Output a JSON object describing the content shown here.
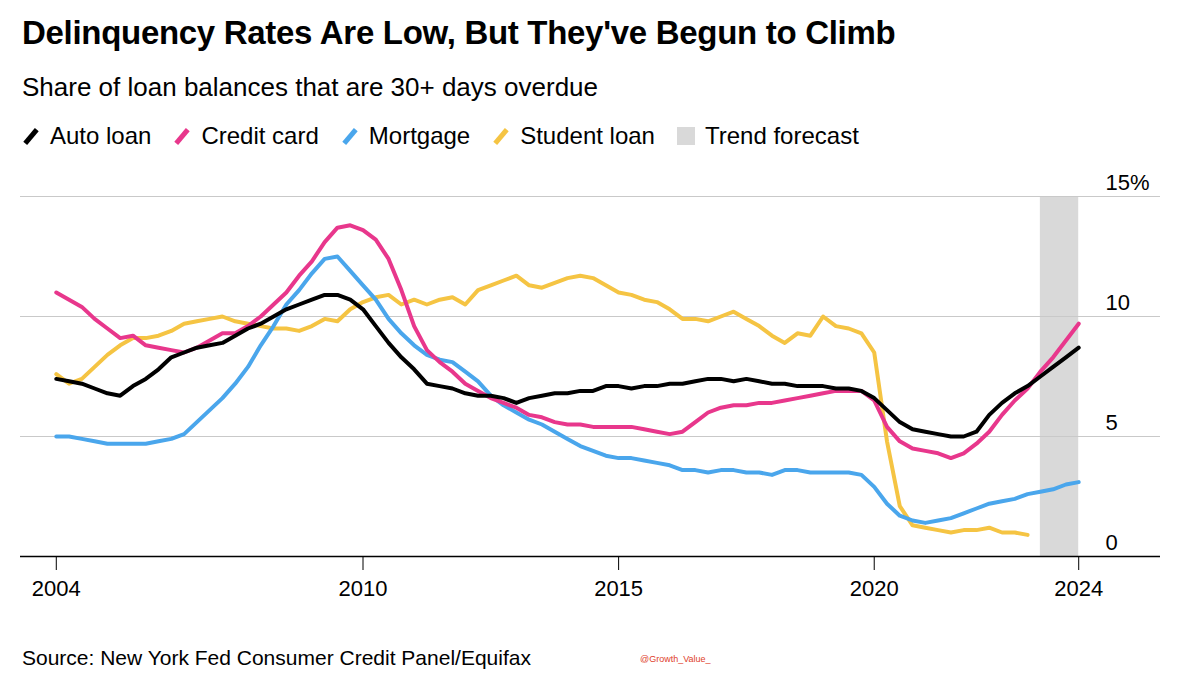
{
  "chart_data": {
    "type": "line",
    "title": "Delinquency Rates Are Low, But They've Begun to Climb",
    "subtitle": "Share of loan balances that are 30+ days overdue",
    "source": "Source: New York Fed Consumer Credit Panel/Equifax",
    "watermark": "@Growth_Value_",
    "x": [
      2004,
      2004.25,
      2004.5,
      2004.75,
      2005,
      2005.25,
      2005.5,
      2005.75,
      2006,
      2006.25,
      2006.5,
      2006.75,
      2007,
      2007.25,
      2007.5,
      2007.75,
      2008,
      2008.25,
      2008.5,
      2008.75,
      2009,
      2009.25,
      2009.5,
      2009.75,
      2010,
      2010.25,
      2010.5,
      2010.75,
      2011,
      2011.25,
      2011.5,
      2011.75,
      2012,
      2012.25,
      2012.5,
      2012.75,
      2013,
      2013.25,
      2013.5,
      2013.75,
      2014,
      2014.25,
      2014.5,
      2014.75,
      2015,
      2015.25,
      2015.5,
      2015.75,
      2016,
      2016.25,
      2016.5,
      2016.75,
      2017,
      2017.25,
      2017.5,
      2017.75,
      2018,
      2018.25,
      2018.5,
      2018.75,
      2019,
      2019.25,
      2019.5,
      2019.75,
      2020,
      2020.25,
      2020.5,
      2020.75,
      2021,
      2021.25,
      2021.5,
      2021.75,
      2022,
      2022.25,
      2022.5,
      2022.75,
      2023,
      2023.25,
      2023.5,
      2023.75,
      2024
    ],
    "series": [
      {
        "name": "Auto loan",
        "color": "#000000",
        "values": [
          7.4,
          7.3,
          7.2,
          7.0,
          6.8,
          6.7,
          7.1,
          7.4,
          7.8,
          8.3,
          8.5,
          8.7,
          8.8,
          8.9,
          9.2,
          9.5,
          9.7,
          10.0,
          10.3,
          10.5,
          10.7,
          10.9,
          10.9,
          10.7,
          10.3,
          9.6,
          8.9,
          8.3,
          7.8,
          7.2,
          7.1,
          7.0,
          6.8,
          6.7,
          6.7,
          6.6,
          6.4,
          6.6,
          6.7,
          6.8,
          6.8,
          6.9,
          6.9,
          7.1,
          7.1,
          7.0,
          7.1,
          7.1,
          7.2,
          7.2,
          7.3,
          7.4,
          7.4,
          7.3,
          7.4,
          7.3,
          7.2,
          7.2,
          7.1,
          7.1,
          7.1,
          7.0,
          7.0,
          6.9,
          6.6,
          6.1,
          5.6,
          5.3,
          5.2,
          5.1,
          5.0,
          5.0,
          5.2,
          5.9,
          6.4,
          6.8,
          7.1,
          7.5,
          7.9,
          8.3,
          8.7
        ]
      },
      {
        "name": "Credit card",
        "color": "#e8378c",
        "values": [
          11.0,
          10.7,
          10.4,
          9.9,
          9.5,
          9.1,
          9.2,
          8.8,
          8.7,
          8.6,
          8.5,
          8.7,
          9.0,
          9.3,
          9.3,
          9.6,
          10.0,
          10.5,
          11.0,
          11.7,
          12.3,
          13.1,
          13.7,
          13.8,
          13.6,
          13.2,
          12.4,
          11.1,
          9.6,
          8.6,
          8.1,
          7.7,
          7.2,
          6.9,
          6.6,
          6.4,
          6.2,
          5.9,
          5.8,
          5.6,
          5.5,
          5.5,
          5.4,
          5.4,
          5.4,
          5.4,
          5.3,
          5.2,
          5.1,
          5.2,
          5.6,
          6.0,
          6.2,
          6.3,
          6.3,
          6.4,
          6.4,
          6.5,
          6.6,
          6.7,
          6.8,
          6.9,
          6.9,
          6.9,
          6.5,
          5.4,
          4.8,
          4.5,
          4.4,
          4.3,
          4.1,
          4.3,
          4.7,
          5.2,
          5.9,
          6.5,
          7.0,
          7.7,
          8.3,
          9.0,
          9.7
        ]
      },
      {
        "name": "Mortgage",
        "color": "#4aa6ec",
        "values": [
          5.0,
          5.0,
          4.9,
          4.8,
          4.7,
          4.7,
          4.7,
          4.7,
          4.8,
          4.9,
          5.1,
          5.6,
          6.1,
          6.6,
          7.2,
          7.9,
          8.8,
          9.6,
          10.5,
          11.1,
          11.8,
          12.4,
          12.5,
          11.9,
          11.3,
          10.7,
          9.9,
          9.3,
          8.8,
          8.4,
          8.2,
          8.1,
          7.7,
          7.3,
          6.7,
          6.3,
          6.0,
          5.7,
          5.5,
          5.2,
          4.9,
          4.6,
          4.4,
          4.2,
          4.1,
          4.1,
          4.0,
          3.9,
          3.8,
          3.6,
          3.6,
          3.5,
          3.6,
          3.6,
          3.5,
          3.5,
          3.4,
          3.6,
          3.6,
          3.5,
          3.5,
          3.5,
          3.5,
          3.4,
          2.9,
          2.2,
          1.7,
          1.5,
          1.4,
          1.5,
          1.6,
          1.8,
          2.0,
          2.2,
          2.3,
          2.4,
          2.6,
          2.7,
          2.8,
          3.0,
          3.1
        ]
      },
      {
        "name": "Student loan",
        "color": "#f5c443",
        "values": [
          7.6,
          7.2,
          7.4,
          7.9,
          8.4,
          8.8,
          9.1,
          9.1,
          9.2,
          9.4,
          9.7,
          9.8,
          9.9,
          10.0,
          9.8,
          9.7,
          9.6,
          9.5,
          9.5,
          9.4,
          9.6,
          9.9,
          9.8,
          10.3,
          10.6,
          10.8,
          10.9,
          10.5,
          10.7,
          10.5,
          10.7,
          10.8,
          10.5,
          11.1,
          11.3,
          11.5,
          11.7,
          11.3,
          11.2,
          11.4,
          11.6,
          11.7,
          11.6,
          11.3,
          11.0,
          10.9,
          10.7,
          10.6,
          10.3,
          9.9,
          9.9,
          9.8,
          10.0,
          10.2,
          9.9,
          9.6,
          9.2,
          8.9,
          9.3,
          9.2,
          10.0,
          9.6,
          9.5,
          9.3,
          8.5,
          4.8,
          2.1,
          1.3,
          1.2,
          1.1,
          1.0,
          1.1,
          1.1,
          1.2,
          1.0,
          1.0,
          0.9,
          null,
          null,
          null,
          null
        ]
      }
    ],
    "forecast": {
      "label": "Trend forecast",
      "start": 2023.25,
      "end": 2024,
      "color": "#d9d9d9"
    },
    "xlim": [
      2003.3,
      2025.6
    ],
    "xticks": [
      2004,
      2010,
      2015,
      2020,
      2024
    ],
    "ylim": [
      0,
      15
    ],
    "yticks": [
      0,
      5,
      10,
      {
        "value": 15,
        "label": "15%"
      }
    ],
    "grid": true
  }
}
